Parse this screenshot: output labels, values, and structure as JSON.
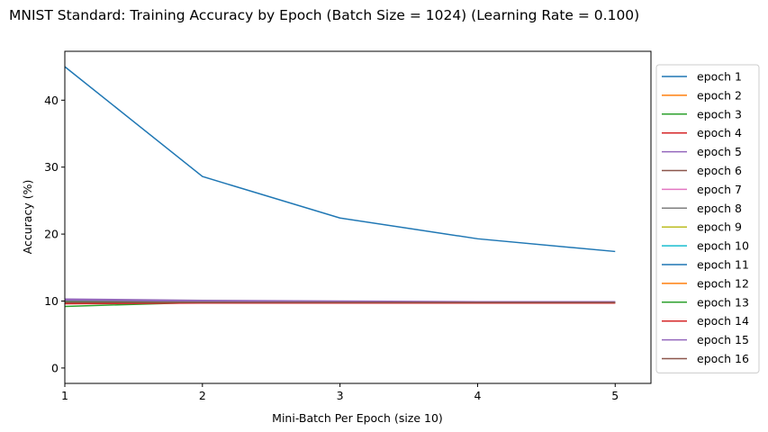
{
  "chart_data": {
    "type": "line",
    "title": "MNIST Standard: Training Accuracy by Epoch (Batch Size = 1024) (Learning Rate = 0.100)",
    "xlabel": "Mini-Batch Per Epoch (size 10)",
    "ylabel": "Accuracy (%)",
    "x": [
      1,
      2,
      3,
      4,
      5
    ],
    "xticks": [
      "1",
      "2",
      "3",
      "4",
      "5"
    ],
    "yticks": [
      "0",
      "10",
      "20",
      "30",
      "40"
    ],
    "xlim": [
      1,
      5.26
    ],
    "ylim": [
      -2.3,
      47.3
    ],
    "grid": false,
    "legend_position": "outside-right",
    "series": [
      {
        "name": "epoch 1",
        "color": "#1f77b4",
        "values": [
          45.0,
          28.6,
          22.4,
          19.3,
          17.4
        ]
      },
      {
        "name": "epoch 2",
        "color": "#ff7f0e",
        "values": [
          9.8,
          9.7,
          9.7,
          9.8,
          9.8
        ]
      },
      {
        "name": "epoch 3",
        "color": "#2ca02c",
        "values": [
          9.2,
          9.8,
          9.9,
          9.9,
          9.8
        ]
      },
      {
        "name": "epoch 4",
        "color": "#d62728",
        "values": [
          9.6,
          9.7,
          9.7,
          9.7,
          9.7
        ]
      },
      {
        "name": "epoch 5",
        "color": "#9467bd",
        "values": [
          10.3,
          10.1,
          10.0,
          9.9,
          9.9
        ]
      },
      {
        "name": "epoch 6",
        "color": "#8c564b",
        "values": [
          9.9,
          9.8,
          9.8,
          9.8,
          9.8
        ]
      },
      {
        "name": "epoch 7",
        "color": "#e377c2",
        "values": [
          10.0,
          9.9,
          9.9,
          9.8,
          9.8
        ]
      },
      {
        "name": "epoch 8",
        "color": "#7f7f7f",
        "values": [
          10.1,
          10.0,
          9.9,
          9.9,
          9.8
        ]
      },
      {
        "name": "epoch 9",
        "color": "#bcbd22",
        "values": [
          9.9,
          9.9,
          9.8,
          9.8,
          9.8
        ]
      },
      {
        "name": "epoch 10",
        "color": "#17becf",
        "values": [
          9.8,
          9.8,
          9.8,
          9.8,
          9.8
        ]
      },
      {
        "name": "epoch 11",
        "color": "#1f77b4",
        "values": [
          9.9,
          9.8,
          9.8,
          9.8,
          9.8
        ]
      },
      {
        "name": "epoch 12",
        "color": "#ff7f0e",
        "values": [
          9.7,
          9.7,
          9.7,
          9.8,
          9.8
        ]
      },
      {
        "name": "epoch 13",
        "color": "#2ca02c",
        "values": [
          9.9,
          9.9,
          9.9,
          9.9,
          9.8
        ]
      },
      {
        "name": "epoch 14",
        "color": "#d62728",
        "values": [
          9.7,
          9.7,
          9.7,
          9.7,
          9.7
        ]
      },
      {
        "name": "epoch 15",
        "color": "#9467bd",
        "values": [
          10.1,
          10.0,
          9.9,
          9.9,
          9.9
        ]
      },
      {
        "name": "epoch 16",
        "color": "#8c564b",
        "values": [
          9.8,
          9.8,
          9.8,
          9.8,
          9.8
        ]
      }
    ]
  }
}
